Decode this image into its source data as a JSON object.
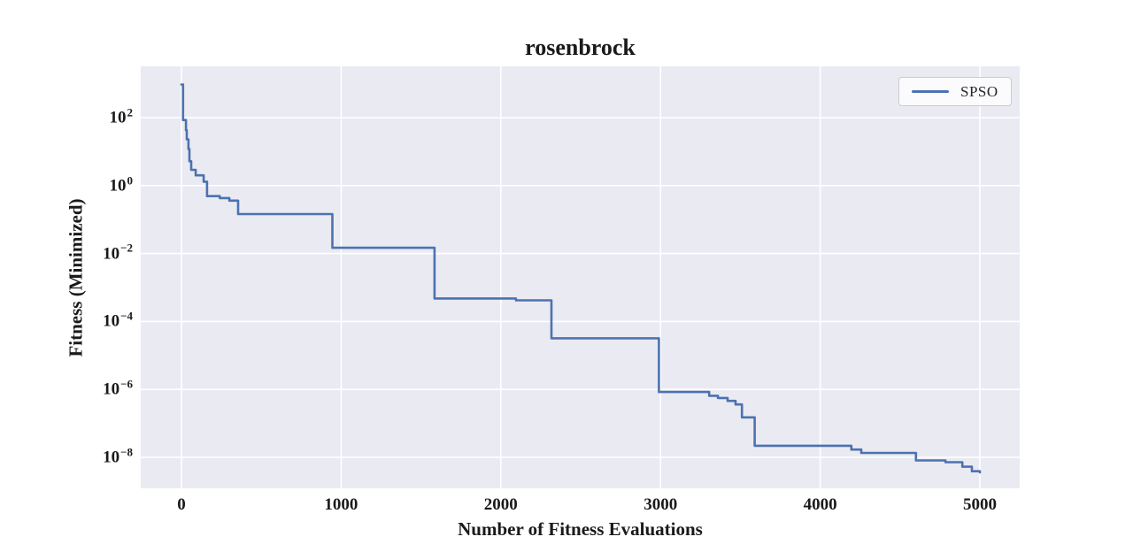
{
  "title": "rosenbrock",
  "axes": {
    "xlabel": "Number of Fitness Evaluations",
    "ylabel": "Fitness (Minimized)",
    "x_ticks": [
      0,
      1000,
      2000,
      3000,
      4000,
      5000
    ],
    "y_tick_exponents": [
      2,
      0,
      -2,
      -4,
      -6,
      -8
    ]
  },
  "legend": {
    "position": "upper right",
    "entries": [
      {
        "label": "SPSO",
        "color": "#4C72B0"
      }
    ]
  },
  "colors": {
    "figure_bg": "#ffffff",
    "plot_bg": "#EAEAF2",
    "grid": "#ffffff",
    "line": "#4C72B0",
    "text": "#1a1a1a"
  },
  "chart_data": {
    "type": "line",
    "subtype": "step-post",
    "title": "rosenbrock",
    "xlabel": "Number of Fitness Evaluations",
    "ylabel": "Fitness (Minimized)",
    "x_range": [
      0,
      5000
    ],
    "y_scale": "log",
    "ylim": [
      1.2e-09,
      3200
    ],
    "grid": true,
    "legend_position": "upper right",
    "series": [
      {
        "name": "SPSO",
        "color": "#4C72B0",
        "points": [
          [
            0,
            950
          ],
          [
            10,
            85
          ],
          [
            28,
            43
          ],
          [
            33,
            23
          ],
          [
            44,
            12
          ],
          [
            50,
            5.2
          ],
          [
            61,
            2.9
          ],
          [
            89,
            2.0
          ],
          [
            139,
            1.3
          ],
          [
            160,
            0.49
          ],
          [
            240,
            0.43
          ],
          [
            300,
            0.36
          ],
          [
            355,
            0.145
          ],
          [
            945,
            0.0148
          ],
          [
            1585,
            0.000475
          ],
          [
            2095,
            0.00042
          ],
          [
            2317,
            3.2e-05
          ],
          [
            2990,
            8.4e-07
          ],
          [
            3305,
            6.5e-07
          ],
          [
            3360,
            5.6e-07
          ],
          [
            3420,
            4.6e-07
          ],
          [
            3470,
            3.6e-07
          ],
          [
            3510,
            1.5e-07
          ],
          [
            3590,
            2.2e-08
          ],
          [
            4195,
            1.7e-08
          ],
          [
            4257,
            1.35e-08
          ],
          [
            4600,
            8.1e-09
          ],
          [
            4785,
            7.2e-09
          ],
          [
            4890,
            5.3e-09
          ],
          [
            4950,
            3.9e-09
          ],
          [
            5000,
            3.6e-09
          ]
        ]
      }
    ]
  }
}
